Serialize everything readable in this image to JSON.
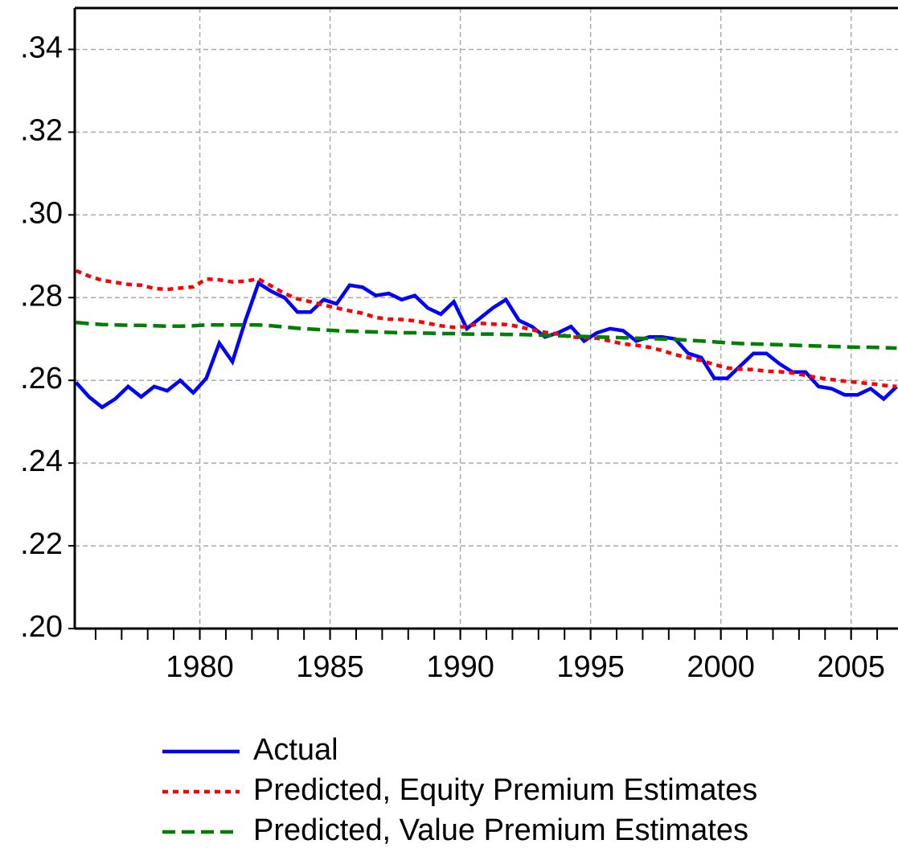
{
  "chart_data": {
    "type": "line",
    "x": [
      1975.25,
      1975.75,
      1976.25,
      1976.75,
      1977.25,
      1977.75,
      1978.25,
      1978.75,
      1979.25,
      1979.75,
      1980.25,
      1980.75,
      1981.25,
      1981.75,
      1982.25,
      1982.75,
      1983.25,
      1983.75,
      1984.25,
      1984.75,
      1985.25,
      1985.75,
      1986.25,
      1986.75,
      1987.25,
      1987.75,
      1988.25,
      1988.75,
      1989.25,
      1989.75,
      1990.25,
      1990.75,
      1991.25,
      1991.75,
      1992.25,
      1992.75,
      1993.25,
      1993.75,
      1994.25,
      1994.75,
      1995.25,
      1995.75,
      1996.25,
      1996.75,
      1997.25,
      1997.75,
      1998.25,
      1998.75,
      1999.25,
      1999.75,
      2000.25,
      2000.75,
      2001.25,
      2001.75,
      2002.25,
      2002.75,
      2003.25,
      2003.75,
      2004.25,
      2004.75,
      2005.25,
      2005.75,
      2006.25,
      2006.75
    ],
    "series": [
      {
        "name": "Actual",
        "color": "#0000ff",
        "dash": "solid",
        "values": [
          0.2595,
          0.256,
          0.2535,
          0.2555,
          0.2585,
          0.256,
          0.2585,
          0.2575,
          0.26,
          0.257,
          0.2605,
          0.269,
          0.2645,
          0.2745,
          0.2835,
          0.2815,
          0.28,
          0.2765,
          0.2765,
          0.2795,
          0.2785,
          0.283,
          0.2825,
          0.2805,
          0.281,
          0.2795,
          0.2805,
          0.2775,
          0.276,
          0.279,
          0.2725,
          0.275,
          0.2775,
          0.2795,
          0.2745,
          0.273,
          0.2705,
          0.2715,
          0.273,
          0.2695,
          0.2715,
          0.2725,
          0.272,
          0.2695,
          0.2705,
          0.2705,
          0.27,
          0.2665,
          0.2655,
          0.2605,
          0.2605,
          0.2635,
          0.2665,
          0.2665,
          0.264,
          0.262,
          0.262,
          0.2585,
          0.258,
          0.2565,
          0.2565,
          0.258,
          0.2555,
          0.2585
        ]
      },
      {
        "name": "Predicted, Equity Premium Estimates",
        "color": "#ff0000",
        "dash": "dotted",
        "values": [
          0.2865,
          0.2852,
          0.2842,
          0.2837,
          0.2832,
          0.283,
          0.2822,
          0.282,
          0.2823,
          0.2826,
          0.2845,
          0.2843,
          0.2838,
          0.284,
          0.2845,
          0.2828,
          0.281,
          0.2797,
          0.279,
          0.2782,
          0.2775,
          0.2768,
          0.2762,
          0.2752,
          0.2748,
          0.2747,
          0.2744,
          0.2738,
          0.2732,
          0.2728,
          0.273,
          0.2738,
          0.2736,
          0.2735,
          0.273,
          0.2722,
          0.2716,
          0.2712,
          0.2705,
          0.2703,
          0.2702,
          0.2695,
          0.2688,
          0.2685,
          0.268,
          0.2672,
          0.2662,
          0.2655,
          0.2648,
          0.2638,
          0.263,
          0.2627,
          0.2626,
          0.2622,
          0.2621,
          0.2618,
          0.2612,
          0.2606,
          0.2602,
          0.2598,
          0.2595,
          0.2592,
          0.2588,
          0.2585
        ]
      },
      {
        "name": "Predicted, Value Premium Estimates",
        "color": "#008000",
        "dash": "dashed",
        "values": [
          0.274,
          0.2737,
          0.2735,
          0.2734,
          0.2733,
          0.2733,
          0.2732,
          0.2731,
          0.2731,
          0.2732,
          0.2734,
          0.2734,
          0.2734,
          0.2734,
          0.2734,
          0.2732,
          0.2729,
          0.2726,
          0.2724,
          0.2722,
          0.272,
          0.2719,
          0.2718,
          0.2717,
          0.2716,
          0.2715,
          0.2715,
          0.2714,
          0.2713,
          0.2713,
          0.2712,
          0.2712,
          0.2712,
          0.2711,
          0.2711,
          0.271,
          0.2709,
          0.2708,
          0.2707,
          0.2706,
          0.2705,
          0.2704,
          0.2703,
          0.2702,
          0.2701,
          0.27,
          0.2699,
          0.2697,
          0.2695,
          0.2693,
          0.2691,
          0.2689,
          0.2688,
          0.2687,
          0.2686,
          0.2685,
          0.2684,
          0.2683,
          0.2682,
          0.2681,
          0.268,
          0.268,
          0.2679,
          0.2678
        ]
      }
    ],
    "xlim": [
      1975.2,
      2006.8
    ],
    "xticks": [
      1980,
      1985,
      1990,
      1995,
      2000,
      2005
    ],
    "ylim": [
      0.2,
      0.35
    ],
    "yticks": [
      {
        "value": 0.2,
        "label": ".20"
      },
      {
        "value": 0.22,
        "label": ".22"
      },
      {
        "value": 0.24,
        "label": ".24"
      },
      {
        "value": 0.26,
        "label": ".26"
      },
      {
        "value": 0.28,
        "label": ".28"
      },
      {
        "value": 0.3,
        "label": ".30"
      },
      {
        "value": 0.32,
        "label": ".32"
      },
      {
        "value": 0.34,
        "label": ".34"
      }
    ],
    "grid": true,
    "legend": "bottom"
  }
}
